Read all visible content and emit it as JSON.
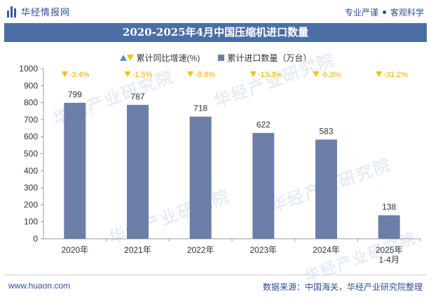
{
  "header": {
    "brand": "华经情报网",
    "tagline_left": "专业严谨",
    "tagline_right": "客观科学",
    "title": "2020-2025年4月中国压缩机进口数量"
  },
  "legend": {
    "growth_label": "累计同比增速(%)",
    "quantity_label": "累计进口数量（万台）"
  },
  "watermark": {
    "text": "华经产业研究院",
    "site": "www.huaon.com"
  },
  "footer": {
    "site": "www.huaon.com",
    "source": "数据来源：中国海关，华经产业研究院整理"
  },
  "colors": {
    "bar": "#6b7ea8",
    "growth_marker": "#f2c200",
    "growth_text": "#f2a900",
    "title_bg": "#4a6fa5"
  },
  "chart_data": {
    "type": "bar",
    "categories": [
      "2020年",
      "2021年",
      "2022年",
      "2023年",
      "2024年",
      "2025年\n1-4月"
    ],
    "series": [
      {
        "name": "累计进口数量（万台）",
        "values": [
          799,
          787,
          718,
          622,
          583,
          138
        ]
      },
      {
        "name": "累计同比增速(%)",
        "values": [
          -3.4,
          -1.5,
          -8.8,
          -13.3,
          -6.3,
          -31.2
        ],
        "labels": [
          "-3.4%",
          "-1.5%",
          "-8.8%",
          "-13.3%",
          "-6.3%",
          "-31.2%"
        ]
      }
    ],
    "ylim": [
      0,
      1000
    ],
    "yticks": [
      0,
      100,
      200,
      300,
      400,
      500,
      600,
      700,
      800,
      900,
      1000
    ],
    "title": "2020-2025年4月中国压缩机进口数量",
    "xlabel": "",
    "ylabel": "",
    "grid": false,
    "legend_position": "top"
  }
}
